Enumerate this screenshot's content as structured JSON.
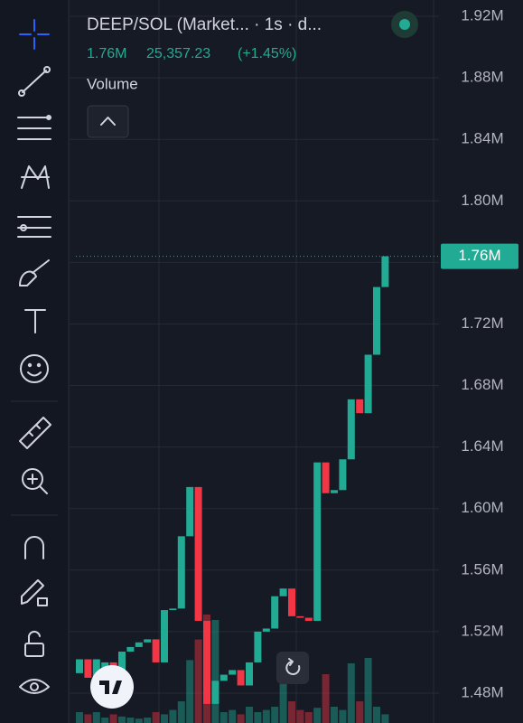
{
  "header": {
    "title": "DEEP/SOL (Market... · 1s · d...",
    "last": "1.76M",
    "change": "25,357.23",
    "change_pct": "(+1.45%)",
    "pane_label": "Volume"
  },
  "chart_data": {
    "type": "candlestick",
    "open": [
      1493000,
      1502000,
      1490000,
      1495000,
      1500000,
      1492000,
      1507000,
      1510000,
      1513000,
      1515000,
      1500000,
      1534000,
      1535000,
      1582000,
      1614000,
      1527000,
      1473000,
      1488000,
      1492000,
      1495000,
      1485000,
      1500000,
      1520000,
      1522000,
      1543000,
      1548000,
      1530000,
      1529000,
      1527000,
      1630000,
      1610000,
      1612000,
      1632000,
      1671000,
      1662000,
      1700000,
      1744000
    ],
    "close": [
      1502000,
      1490000,
      1502000,
      1500000,
      1492000,
      1507000,
      1510000,
      1513000,
      1515000,
      1500000,
      1534000,
      1535000,
      1582000,
      1614000,
      1527000,
      1473000,
      1488000,
      1492000,
      1495000,
      1485000,
      1500000,
      1520000,
      1522000,
      1543000,
      1548000,
      1530000,
      1529000,
      1527000,
      1630000,
      1610000,
      1612000,
      1632000,
      1671000,
      1662000,
      1700000,
      1744000,
      1764000
    ],
    "volume": [
      10,
      8,
      10,
      5,
      8,
      6,
      5,
      4,
      5,
      10,
      8,
      12,
      20,
      58,
      77,
      100,
      95,
      10,
      12,
      8,
      15,
      10,
      12,
      15,
      48,
      20,
      12,
      10,
      14,
      45,
      15,
      12,
      55,
      20,
      60,
      15,
      8
    ],
    "vlim": [
      0,
      100
    ],
    "up_color": "#22ab94",
    "down_color": "#f23645",
    "ylim": [
      1460600,
      1930600
    ],
    "yticks": [
      {
        "value": 1480000,
        "label": "1.48M"
      },
      {
        "value": 1520000,
        "label": "1.52M"
      },
      {
        "value": 1560000,
        "label": "1.56M"
      },
      {
        "value": 1600000,
        "label": "1.60M"
      },
      {
        "value": 1640000,
        "label": "1.64M"
      },
      {
        "value": 1680000,
        "label": "1.68M"
      },
      {
        "value": 1720000,
        "label": "1.72M"
      },
      {
        "value": 1760000,
        "label": "1.76M"
      },
      {
        "value": 1800000,
        "label": "1.80M"
      },
      {
        "value": 1840000,
        "label": "1.84M"
      },
      {
        "value": 1880000,
        "label": "1.88M"
      },
      {
        "value": 1920000,
        "label": "1.92M"
      }
    ],
    "last_price": {
      "value": 1764000,
      "label": "1.76M"
    },
    "grid": true
  }
}
